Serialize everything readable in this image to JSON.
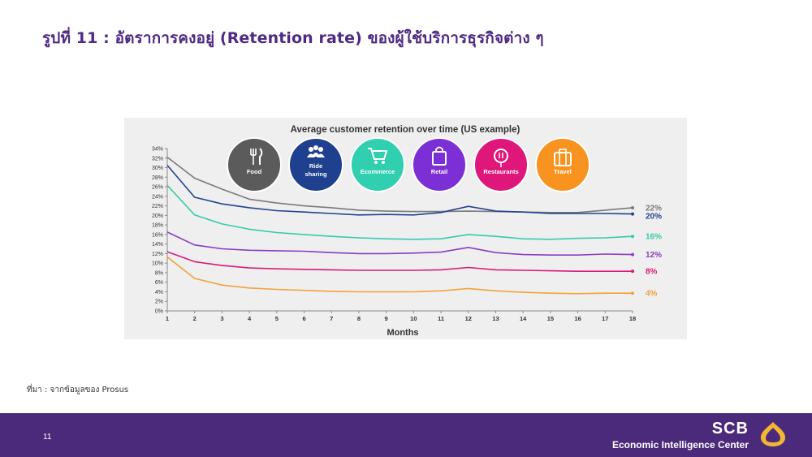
{
  "slide": {
    "title": "รูปที่ 11  : อัตราการคงอยู่ (Retention rate) ของผู้ใช้บริการธุรกิจต่าง ๆ",
    "source": "ที่มา : จากข้อมูลของ Prosus",
    "page_number": "11"
  },
  "brand": {
    "name": "SCB",
    "subtitle": "Economic Intelligence Center",
    "logo_color": "#f2b632"
  },
  "categories": [
    {
      "label": "Food",
      "label_lines": [
        "Food"
      ],
      "color": "#5b5b5b",
      "icon": "fork-knife-icon"
    },
    {
      "label": "Ride sharing",
      "label_lines": [
        "Ride",
        "sharing"
      ],
      "color": "#1f3f8f",
      "icon": "people-icon"
    },
    {
      "label": "Ecommerce",
      "label_lines": [
        "Ecommerce"
      ],
      "color": "#2fcfb0",
      "icon": "cart-icon"
    },
    {
      "label": "Retail",
      "label_lines": [
        "Retail"
      ],
      "color": "#7d2fd6",
      "icon": "shopping-bag-icon"
    },
    {
      "label": "Restaurants",
      "label_lines": [
        "Restaurants"
      ],
      "color": "#e0177a",
      "icon": "plate-icon"
    },
    {
      "label": "Travel",
      "label_lines": [
        "Travel"
      ],
      "color": "#f7931e",
      "icon": "suitcase-icon"
    }
  ],
  "chart_data": {
    "type": "line",
    "title": "Average customer retention over time (US example)",
    "xlabel": "Months",
    "ylabel": "",
    "x": [
      1,
      2,
      3,
      4,
      5,
      6,
      7,
      8,
      9,
      10,
      11,
      12,
      13,
      14,
      15,
      16,
      17,
      18
    ],
    "ylim": [
      0,
      34
    ],
    "yticks": [
      "0%",
      "2%",
      "4%",
      "6%",
      "8%",
      "10%",
      "12%",
      "14%",
      "16%",
      "18%",
      "20%",
      "22%",
      "24%",
      "26%",
      "28%",
      "30%",
      "32%",
      "34%"
    ],
    "grid": false,
    "series": [
      {
        "color": "#7a7a7a",
        "end_label": "22%",
        "values": [
          32.2,
          27.8,
          25.5,
          23.4,
          22.6,
          22.0,
          21.6,
          21.1,
          20.9,
          20.8,
          20.8,
          20.9,
          20.8,
          20.7,
          20.6,
          20.6,
          21.1,
          21.6
        ]
      },
      {
        "color": "#23418f",
        "end_label": "20%",
        "values": [
          30.5,
          23.8,
          22.4,
          21.6,
          21.0,
          20.7,
          20.4,
          20.1,
          20.2,
          20.1,
          20.6,
          21.9,
          20.9,
          20.7,
          20.4,
          20.4,
          20.4,
          20.3
        ]
      },
      {
        "color": "#35cba9",
        "end_label": "16%",
        "values": [
          26.3,
          20.1,
          18.2,
          17.1,
          16.4,
          16.0,
          15.6,
          15.3,
          15.1,
          15.0,
          15.1,
          16.0,
          15.6,
          15.1,
          15.0,
          15.2,
          15.3,
          15.6
        ]
      },
      {
        "color": "#8a3ec2",
        "end_label": "12%",
        "values": [
          16.5,
          13.8,
          13.0,
          12.7,
          12.6,
          12.5,
          12.2,
          12.0,
          12.0,
          12.1,
          12.3,
          13.3,
          12.2,
          11.8,
          11.7,
          11.7,
          11.9,
          11.8
        ]
      },
      {
        "color": "#d81b79",
        "end_label": "8%",
        "values": [
          12.4,
          10.3,
          9.5,
          9.0,
          8.8,
          8.7,
          8.6,
          8.5,
          8.5,
          8.5,
          8.6,
          9.1,
          8.6,
          8.5,
          8.4,
          8.3,
          8.3,
          8.3
        ]
      },
      {
        "color": "#f2a23c",
        "end_label": "4%",
        "values": [
          11.3,
          6.8,
          5.4,
          4.8,
          4.5,
          4.3,
          4.1,
          4.0,
          4.0,
          4.0,
          4.2,
          4.7,
          4.2,
          3.9,
          3.7,
          3.6,
          3.7,
          3.7
        ]
      }
    ]
  }
}
